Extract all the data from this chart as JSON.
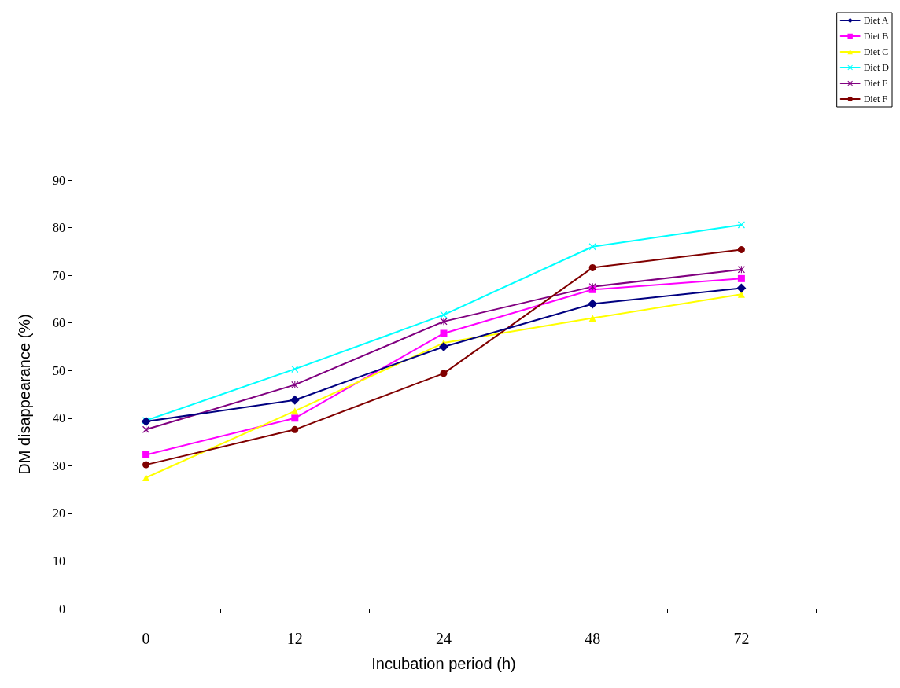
{
  "chart_data": {
    "type": "line",
    "xlabel": "Incubation period (h)",
    "ylabel": "DM disappearance (%)",
    "categories": [
      "0",
      "12",
      "24",
      "48",
      "72"
    ],
    "ylim": [
      0,
      90
    ],
    "yticks": [
      0,
      10,
      20,
      30,
      40,
      50,
      60,
      70,
      80,
      90
    ],
    "grid": false,
    "legend": "top right",
    "line_style": "solid",
    "series": [
      {
        "name": "Diet A",
        "color": "#000080",
        "marker": "diamond",
        "values": [
          39.3,
          43.8,
          55,
          64,
          67.3
        ]
      },
      {
        "name": "Diet B",
        "color": "#ff00ff",
        "marker": "square",
        "values": [
          32.3,
          40,
          57.8,
          67,
          69.3
        ]
      },
      {
        "name": "Diet C",
        "color": "#ffff00",
        "marker": "triangle",
        "values": [
          27.5,
          41.5,
          55.8,
          61,
          66
        ]
      },
      {
        "name": "Diet D",
        "color": "#00ffff",
        "marker": "cross",
        "values": [
          39.5,
          50.3,
          61.7,
          76,
          80.6
        ]
      },
      {
        "name": "Diet E",
        "color": "#800080",
        "marker": "star",
        "values": [
          37.6,
          47,
          60.3,
          67.6,
          71.2
        ]
      },
      {
        "name": "Diet F",
        "color": "#800000",
        "marker": "circle",
        "values": [
          30.2,
          37.6,
          49.4,
          71.6,
          75.4
        ]
      }
    ]
  }
}
